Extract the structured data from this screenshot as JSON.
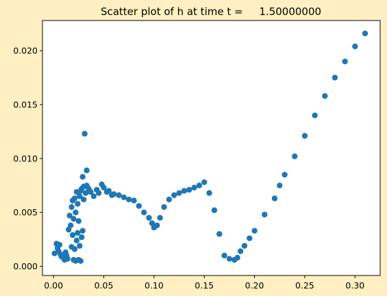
{
  "figure": {
    "background": "#ffefc2",
    "plot_background": "#ffffff"
  },
  "chart_data": {
    "type": "scatter",
    "title": "Scatter plot of h at time t =     1.50000000",
    "xlabel": "",
    "ylabel": "",
    "xlim": [
      -0.011,
      0.325
    ],
    "ylim": [
      -0.00085,
      0.0228
    ],
    "xticks": [
      "0.00",
      "0.05",
      "0.10",
      "0.15",
      "0.20",
      "0.25",
      "0.30"
    ],
    "xtick_values": [
      0.0,
      0.05,
      0.1,
      0.15,
      0.2,
      0.25,
      0.3
    ],
    "yticks": [
      "0.000",
      "0.005",
      "0.010",
      "0.015",
      "0.020"
    ],
    "ytick_values": [
      0.0,
      0.005,
      0.01,
      0.015,
      0.02
    ],
    "grid": false,
    "legend": "none",
    "marker_color": "#1f77b4",
    "series": [
      {
        "points": [
          [
            0.001,
            0.0012
          ],
          [
            0.003,
            0.0021
          ],
          [
            0.004,
            0.0017
          ],
          [
            0.005,
            0.0014
          ],
          [
            0.006,
            0.002
          ],
          [
            0.007,
            0.0011
          ],
          [
            0.008,
            0.0009
          ],
          [
            0.01,
            0.0008
          ],
          [
            0.011,
            0.0006
          ],
          [
            0.012,
            0.0013
          ],
          [
            0.013,
            0.001
          ],
          [
            0.014,
            0.0007
          ],
          [
            0.015,
            0.0034
          ],
          [
            0.016,
            0.0047
          ],
          [
            0.017,
            0.0038
          ],
          [
            0.018,
            0.0055
          ],
          [
            0.018,
            0.0018
          ],
          [
            0.019,
            0.0029
          ],
          [
            0.019,
            0.0061
          ],
          [
            0.02,
            0.0006
          ],
          [
            0.02,
            0.0044
          ],
          [
            0.021,
            0.0016
          ],
          [
            0.021,
            0.0063
          ],
          [
            0.022,
            0.005
          ],
          [
            0.022,
            0.0005
          ],
          [
            0.023,
            0.0024
          ],
          [
            0.023,
            0.0069
          ],
          [
            0.024,
            0.0031
          ],
          [
            0.024,
            0.0058
          ],
          [
            0.025,
            0.0006
          ],
          [
            0.025,
            0.0042
          ],
          [
            0.026,
            0.0065
          ],
          [
            0.026,
            0.0019
          ],
          [
            0.027,
            0.0005
          ],
          [
            0.027,
            0.007
          ],
          [
            0.028,
            0.0027
          ],
          [
            0.028,
            0.0072
          ],
          [
            0.029,
            0.0083
          ],
          [
            0.029,
            0.0033
          ],
          [
            0.03,
            0.0074
          ],
          [
            0.03,
            0.0062
          ],
          [
            0.031,
            0.0123
          ],
          [
            0.032,
            0.0068
          ],
          [
            0.033,
            0.0089
          ],
          [
            0.033,
            0.0075
          ],
          [
            0.035,
            0.0072
          ],
          [
            0.037,
            0.0069
          ],
          [
            0.04,
            0.0065
          ],
          [
            0.043,
            0.0071
          ],
          [
            0.045,
            0.0068
          ],
          [
            0.048,
            0.0076
          ],
          [
            0.05,
            0.0073
          ],
          [
            0.053,
            0.0069
          ],
          [
            0.055,
            0.007
          ],
          [
            0.058,
            0.0066
          ],
          [
            0.06,
            0.0067
          ],
          [
            0.065,
            0.0066
          ],
          [
            0.07,
            0.0064
          ],
          [
            0.075,
            0.0062
          ],
          [
            0.08,
            0.0061
          ],
          [
            0.085,
            0.0056
          ],
          [
            0.09,
            0.005
          ],
          [
            0.095,
            0.0045
          ],
          [
            0.098,
            0.004
          ],
          [
            0.1,
            0.0036
          ],
          [
            0.103,
            0.0038
          ],
          [
            0.106,
            0.0045
          ],
          [
            0.11,
            0.0055
          ],
          [
            0.115,
            0.0062
          ],
          [
            0.12,
            0.0066
          ],
          [
            0.125,
            0.0068
          ],
          [
            0.13,
            0.007
          ],
          [
            0.135,
            0.0071
          ],
          [
            0.14,
            0.0073
          ],
          [
            0.145,
            0.0075
          ],
          [
            0.15,
            0.0078
          ],
          [
            0.155,
            0.0068
          ],
          [
            0.16,
            0.0052
          ],
          [
            0.165,
            0.003
          ],
          [
            0.17,
            0.001
          ],
          [
            0.175,
            0.0007
          ],
          [
            0.18,
            0.0006
          ],
          [
            0.183,
            0.0008
          ],
          [
            0.186,
            0.0014
          ],
          [
            0.19,
            0.0019
          ],
          [
            0.195,
            0.0026
          ],
          [
            0.2,
            0.0033
          ],
          [
            0.21,
            0.0048
          ],
          [
            0.22,
            0.0063
          ],
          [
            0.225,
            0.0075
          ],
          [
            0.23,
            0.0085
          ],
          [
            0.24,
            0.0102
          ],
          [
            0.25,
            0.0121
          ],
          [
            0.26,
            0.014
          ],
          [
            0.27,
            0.0158
          ],
          [
            0.28,
            0.0175
          ],
          [
            0.29,
            0.019
          ],
          [
            0.3,
            0.0204
          ],
          [
            0.31,
            0.0216
          ]
        ]
      }
    ]
  }
}
